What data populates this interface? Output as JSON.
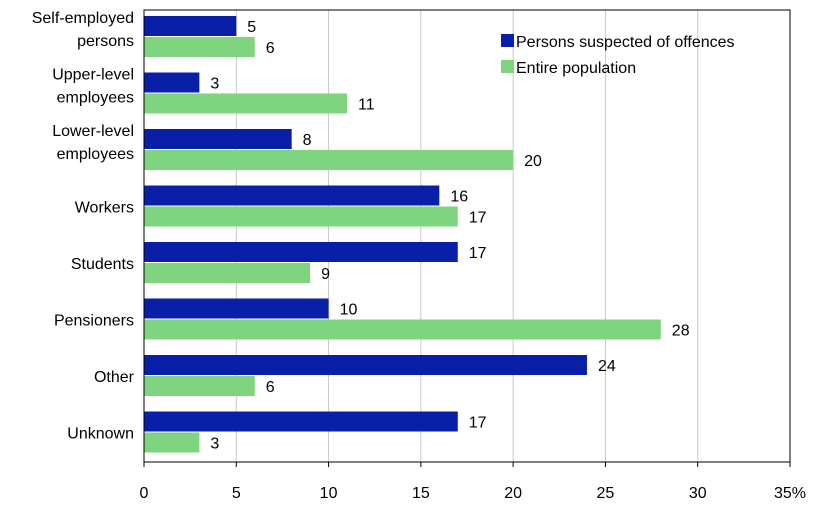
{
  "chart_data": {
    "type": "bar",
    "orientation": "horizontal",
    "title": "",
    "xlabel": "",
    "ylabel": "",
    "categories": [
      [
        "Self-employed",
        "persons"
      ],
      [
        "Upper-level",
        "employees"
      ],
      [
        "Lower-level",
        "employees"
      ],
      [
        "Workers"
      ],
      [
        "Students"
      ],
      [
        "Pensioners"
      ],
      [
        "Other"
      ],
      [
        "Unknown"
      ]
    ],
    "series": [
      {
        "name": "Persons suspected of offences",
        "color": "#0a1fa8",
        "values": [
          5,
          3,
          8,
          16,
          17,
          10,
          24,
          17
        ]
      },
      {
        "name": "Entire population",
        "color": "#7fd47f",
        "values": [
          6,
          11,
          20,
          17,
          9,
          28,
          6,
          3
        ]
      }
    ],
    "xlim": [
      0,
      35
    ],
    "xticks": [
      "0",
      "5",
      "10",
      "15",
      "20",
      "25",
      "30",
      "35%"
    ],
    "grid": "vertical",
    "legend_position": "top-right"
  }
}
